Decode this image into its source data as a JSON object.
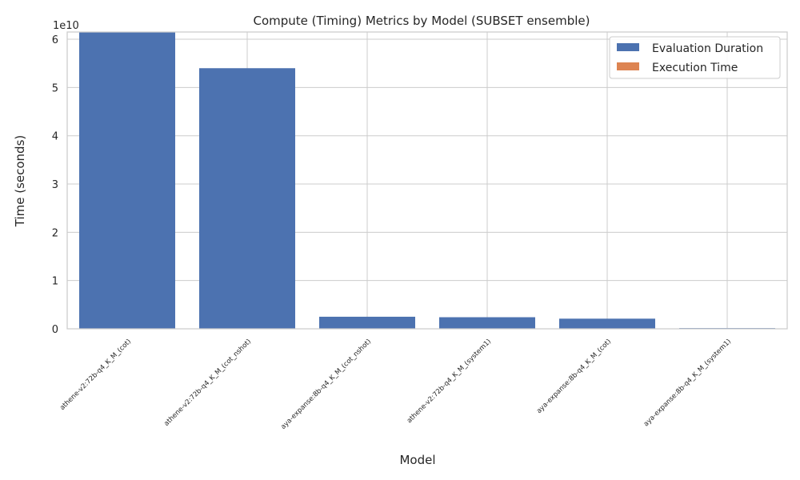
{
  "chart_data": {
    "type": "bar",
    "title": "Compute (Timing) Metrics by Model (SUBSET ensemble)",
    "xlabel": "Model",
    "ylabel": "Time (seconds)",
    "y_multiplier_label": "1e10",
    "ylim": [
      0,
      61500000000.0
    ],
    "yticks": [
      0,
      10000000000.0,
      20000000000.0,
      30000000000.0,
      40000000000.0,
      50000000000.0,
      60000000000.0
    ],
    "ytick_labels": [
      "0",
      "1",
      "2",
      "3",
      "4",
      "5",
      "6"
    ],
    "categories": [
      "athene-v2:72b-q4_K_M_(cot)",
      "athene-v2:72b-q4_K_M_(cot_nshot)",
      "aya-expanse:8b-q4_K_M_(cot_nshot)",
      "athene-v2:72b-q4_K_M_(system1)",
      "aya-expanse:8b-q4_K_M_(cot)",
      "aya-expanse:8b-q4_K_M_(system1)"
    ],
    "series": [
      {
        "name": "Evaluation Duration",
        "color": "#4c72b0",
        "values": [
          61500000000.0,
          54000000000.0,
          2500000000.0,
          2400000000.0,
          2100000000.0,
          150000000.0
        ]
      },
      {
        "name": "Execution Time",
        "color": "#dd8452",
        "values": [
          60,
          55,
          3,
          3,
          2,
          1
        ]
      }
    ],
    "grid": true,
    "legend_position": "top-right"
  }
}
